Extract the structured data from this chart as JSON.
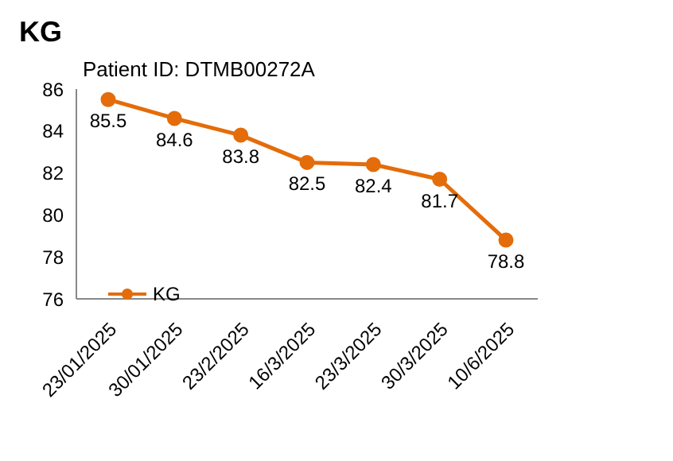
{
  "chart_data": {
    "type": "line",
    "title": "KG",
    "annotations": [
      "Patient ID: DTMB00272A"
    ],
    "categories": [
      "23/01/2025",
      "30/01/2025",
      "23/2/2025",
      "16/3/2025",
      "23/3/2025",
      "30/3/2025",
      "10/6/2025"
    ],
    "series": [
      {
        "name": "KG",
        "color": "#e46c0a",
        "values": [
          85.5,
          84.6,
          83.8,
          82.5,
          82.4,
          81.7,
          78.8
        ]
      }
    ],
    "ylim": [
      76,
      86
    ],
    "yticks": [
      76,
      78,
      80,
      82,
      84,
      86
    ],
    "grid": false,
    "legend": "bottom left",
    "marker": "circle",
    "line_style": "solid",
    "data_labels": true
  }
}
